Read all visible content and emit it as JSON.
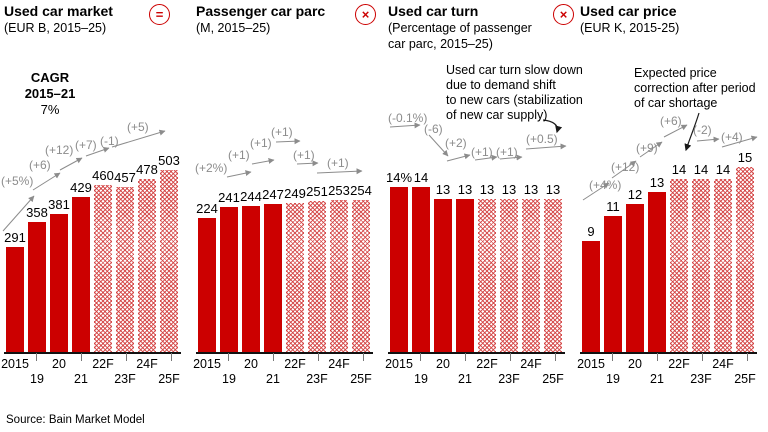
{
  "slide": {
    "source": "Source: Bain Market Model",
    "cagr": {
      "title": "CAGR",
      "period": "2015–21",
      "value": "7%"
    }
  },
  "chart_data": [
    {
      "type": "bar",
      "title": "Used car market",
      "subtitle": "(EUR B, 2015–25)",
      "operator_after": "=",
      "categories": [
        "2015",
        "19",
        "20",
        "21",
        "22F",
        "23F",
        "24F",
        "25F"
      ],
      "values": [
        291,
        358,
        381,
        429,
        460,
        457,
        478,
        503
      ],
      "value_labels": [
        "291",
        "358",
        "381",
        "429",
        "460",
        "457",
        "478",
        "503"
      ],
      "growth_labels": [
        "(+5%)",
        "(+6)",
        "(+12)",
        "(+7)",
        "(-1)",
        "(+5)"
      ],
      "forecast_from_index": 4,
      "annotation_lines": [],
      "bar_color": "#cc0000",
      "forecast_style": "hatched",
      "ylim": [
        0,
        520
      ],
      "cagr_note": "CAGR 2015–21 7%"
    },
    {
      "type": "bar",
      "title": "Passenger car parc",
      "subtitle": "(M, 2015–25)",
      "operator_after": "×",
      "categories": [
        "2015",
        "19",
        "20",
        "21",
        "22F",
        "23F",
        "24F",
        "25F"
      ],
      "values": [
        224,
        241,
        244,
        247,
        249,
        251,
        253,
        254
      ],
      "value_labels": [
        "224",
        "241",
        "244",
        "247",
        "249",
        "251",
        "253",
        "254"
      ],
      "growth_labels": [
        "(+2%)",
        "(+1)",
        "(+1)",
        "(+1)",
        "(+1)",
        "(+1)"
      ],
      "forecast_from_index": 4,
      "annotation_lines": [],
      "bar_color": "#cc0000",
      "forecast_style": "hatched",
      "ylim": [
        0,
        260
      ]
    },
    {
      "type": "bar",
      "title": "Used car turn",
      "subtitle": "(Percentage of passenger car parc, 2015–25)",
      "operator_after": "×",
      "categories": [
        "2015",
        "19",
        "20",
        "21",
        "22F",
        "23F",
        "24F",
        "25F"
      ],
      "values": [
        14,
        14,
        13,
        13,
        13,
        13,
        13,
        13
      ],
      "value_labels": [
        "14%",
        "14",
        "13",
        "13",
        "13",
        "13",
        "13",
        "13"
      ],
      "growth_labels": [
        "(-0.1%)",
        "(-6)",
        "(+2)",
        "(+1)",
        "(+1)",
        "(+0.5)"
      ],
      "forecast_from_index": 4,
      "annotation_lines": [
        "Used car turn slow down",
        "due to demand shift",
        "to new cars (stabilization",
        "of new car supply)"
      ],
      "bar_color": "#cc0000",
      "forecast_style": "hatched",
      "ylim": [
        0,
        15
      ]
    },
    {
      "type": "bar",
      "title": "Used car price",
      "subtitle": "(EUR K, 2015-25)",
      "operator_after": "",
      "categories": [
        "2015",
        "19",
        "20",
        "21",
        "22F",
        "23F",
        "24F",
        "25F"
      ],
      "values": [
        9,
        11,
        12,
        13,
        14,
        14,
        14,
        15
      ],
      "value_labels": [
        "9",
        "11",
        "12",
        "13",
        "14",
        "14",
        "14",
        "15"
      ],
      "growth_labels": [
        "(+4%)",
        "(+12)",
        "(+9)",
        "(+6)",
        "(-2)",
        "(+4)"
      ],
      "forecast_from_index": 4,
      "annotation_lines": [
        "Expected price",
        "correction after period",
        "of car shortage"
      ],
      "bar_color": "#cc0000",
      "forecast_style": "hatched",
      "ylim": [
        0,
        16
      ]
    }
  ],
  "colors": {
    "bar_solid": "#cc0000",
    "arrow_gray": "#8c8c8c",
    "axis": "#111111"
  }
}
